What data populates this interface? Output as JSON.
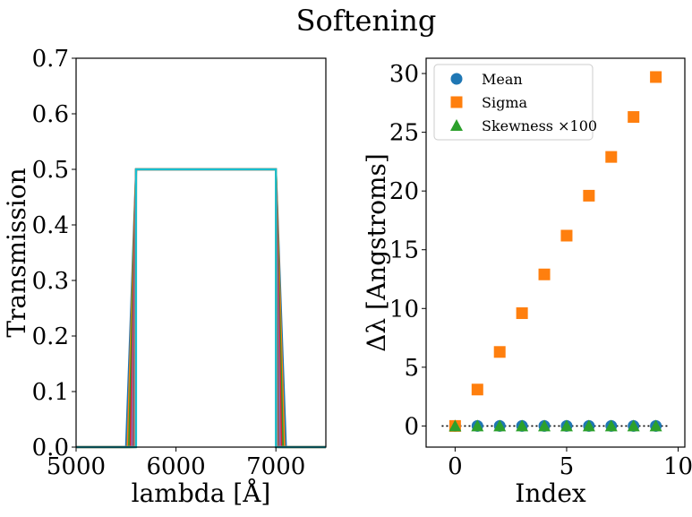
{
  "suptitle": "Softening",
  "chart_data": [
    {
      "type": "line",
      "xlabel": "lambda [Å]",
      "ylabel": "Transmission",
      "xlim": [
        5000,
        7500
      ],
      "ylim": [
        0,
        0.7
      ],
      "xticks": [
        "5000",
        "6000",
        "7000"
      ],
      "yticks": [
        "0.0",
        "0.1",
        "0.2",
        "0.3",
        "0.4",
        "0.5",
        "0.6",
        "0.7"
      ],
      "grid": false,
      "series": [
        {
          "values": [
            [
              5000,
              0
            ],
            [
              5500,
              0
            ],
            [
              5600,
              0.5
            ],
            [
              7000,
              0.5
            ],
            [
              7100,
              0
            ],
            [
              7500,
              0
            ]
          ],
          "color": "#1f77b4"
        },
        {
          "values": [
            [
              5000,
              0
            ],
            [
              5515,
              0
            ],
            [
              5600,
              0.5
            ],
            [
              7000,
              0.5
            ],
            [
              7085,
              0
            ],
            [
              7500,
              0
            ]
          ],
          "color": "#ff7f0e"
        },
        {
          "values": [
            [
              5000,
              0
            ],
            [
              5530,
              0
            ],
            [
              5600,
              0.5
            ],
            [
              7000,
              0.5
            ],
            [
              7070,
              0
            ],
            [
              7500,
              0
            ]
          ],
          "color": "#2ca02c"
        },
        {
          "values": [
            [
              5000,
              0
            ],
            [
              5545,
              0
            ],
            [
              5600,
              0.5
            ],
            [
              7000,
              0.5
            ],
            [
              7055,
              0
            ],
            [
              7500,
              0
            ]
          ],
          "color": "#d62728"
        },
        {
          "values": [
            [
              5000,
              0
            ],
            [
              5560,
              0
            ],
            [
              5600,
              0.5
            ],
            [
              7000,
              0.5
            ],
            [
              7040,
              0
            ],
            [
              7500,
              0
            ]
          ],
          "color": "#9467bd"
        },
        {
          "values": [
            [
              5000,
              0
            ],
            [
              5575,
              0
            ],
            [
              5600,
              0.5
            ],
            [
              7000,
              0.5
            ],
            [
              7025,
              0
            ],
            [
              7500,
              0
            ]
          ],
          "color": "#8c564b"
        },
        {
          "values": [
            [
              5000,
              0
            ],
            [
              5590,
              0
            ],
            [
              5600,
              0.5
            ],
            [
              7000,
              0.5
            ],
            [
              7010,
              0
            ],
            [
              7500,
              0
            ]
          ],
          "color": "#e377c2"
        },
        {
          "values": [
            [
              5000,
              0
            ],
            [
              5595,
              0
            ],
            [
              5600,
              0.5
            ],
            [
              7000,
              0.5
            ],
            [
              7005,
              0
            ],
            [
              7500,
              0
            ]
          ],
          "color": "#7f7f7f"
        },
        {
          "values": [
            [
              5000,
              0
            ],
            [
              5598,
              0
            ],
            [
              5600,
              0.5
            ],
            [
              7000,
              0.5
            ],
            [
              7002,
              0
            ],
            [
              7500,
              0
            ]
          ],
          "color": "#bcbd22"
        },
        {
          "values": [
            [
              5000,
              0
            ],
            [
              5600,
              0
            ],
            [
              5600,
              0.5
            ],
            [
              7000,
              0.5
            ],
            [
              7000,
              0
            ],
            [
              7500,
              0
            ]
          ],
          "color": "#17becf"
        }
      ]
    },
    {
      "type": "scatter",
      "xlabel": "Index",
      "ylabel": "Δλ [Angstroms]",
      "xlim": [
        -1.3,
        10.3
      ],
      "ylim": [
        -1.8,
        31.3
      ],
      "xticks": [
        "0",
        "5",
        "10"
      ],
      "yticks": [
        "0",
        "5",
        "10",
        "15",
        "20",
        "25",
        "30"
      ],
      "grid": false,
      "legend_position": "top-left",
      "reference_line": {
        "y": 0,
        "style": "dotted",
        "color": "#000000"
      },
      "series": [
        {
          "name": "Mean",
          "marker": "circle",
          "color": "#1f77b4",
          "x": [
            0,
            1,
            2,
            3,
            4,
            5,
            6,
            7,
            8,
            9
          ],
          "y": [
            0,
            0,
            0,
            0,
            0,
            0,
            0,
            0,
            0,
            0
          ]
        },
        {
          "name": "Sigma",
          "marker": "square",
          "color": "#ff7f0e",
          "x": [
            0,
            1,
            2,
            3,
            4,
            5,
            6,
            7,
            8,
            9
          ],
          "y": [
            0,
            3.1,
            6.3,
            9.6,
            12.9,
            16.2,
            19.6,
            22.9,
            26.3,
            29.7
          ]
        },
        {
          "name": "Skewness ×100",
          "marker": "triangle",
          "color": "#2ca02c",
          "x": [
            0,
            1,
            2,
            3,
            4,
            5,
            6,
            7,
            8,
            9
          ],
          "y": [
            0,
            0,
            0,
            0,
            0,
            0,
            0,
            0,
            0,
            0
          ]
        }
      ]
    }
  ]
}
